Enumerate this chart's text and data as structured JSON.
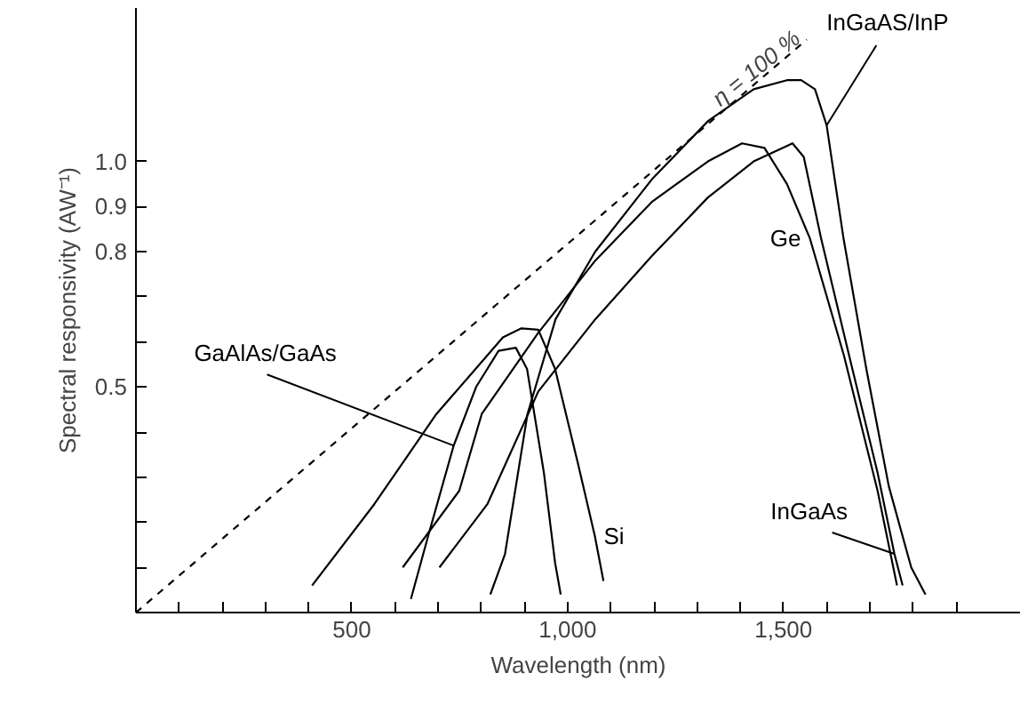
{
  "chart_data": {
    "type": "line",
    "xlabel": "Wavelength (nm)",
    "ylabel": "Spectral responsivity (AW⁻¹)",
    "xlim": [
      0,
      2050
    ],
    "ylim": [
      0,
      1.34
    ],
    "xticks": [
      {
        "value": 100,
        "label": null
      },
      {
        "value": 200,
        "label": null
      },
      {
        "value": 300,
        "label": null
      },
      {
        "value": 400,
        "label": null
      },
      {
        "value": 500,
        "label": "500"
      },
      {
        "value": 600,
        "label": null
      },
      {
        "value": 700,
        "label": null
      },
      {
        "value": 800,
        "label": null
      },
      {
        "value": 900,
        "label": null
      },
      {
        "value": 1000,
        "label": "1,000"
      },
      {
        "value": 1100,
        "label": null
      },
      {
        "value": 1200,
        "label": null
      },
      {
        "value": 1300,
        "label": null
      },
      {
        "value": 1400,
        "label": null
      },
      {
        "value": 1500,
        "label": "1,500"
      },
      {
        "value": 1600,
        "label": null
      },
      {
        "value": 1700,
        "label": null
      },
      {
        "value": 1800,
        "label": null
      },
      {
        "value": 1900,
        "label": null
      }
    ],
    "yticks": [
      {
        "value": 0.1,
        "label": null
      },
      {
        "value": 0.2,
        "label": null
      },
      {
        "value": 0.3,
        "label": null
      },
      {
        "value": 0.4,
        "label": null
      },
      {
        "value": 0.5,
        "label": "0.5"
      },
      {
        "value": 0.6,
        "label": null
      },
      {
        "value": 0.7,
        "label": null
      },
      {
        "value": 0.8,
        "label": "0.8"
      },
      {
        "value": 0.9,
        "label": "0.9"
      },
      {
        "value": 1.0,
        "label": "1.0"
      }
    ],
    "grid": false,
    "marker": "none",
    "line_style": "solid",
    "series": [
      {
        "color": "#000000",
        "line_style": "dashed",
        "x": [
          0,
          1554
        ],
        "values": [
          0,
          1.27
        ]
      },
      {
        "name": "GaAlAs/GaAs",
        "color": "#000000",
        "x": [
          637,
          677,
          736,
          788,
          840,
          880,
          906,
          945,
          971,
          984
        ],
        "values": [
          0.03,
          0.17,
          0.37,
          0.5,
          0.58,
          0.587,
          0.54,
          0.31,
          0.11,
          0.04
        ]
      },
      {
        "name": "Si",
        "color": "#000000",
        "x": [
          408,
          552,
          696,
          814,
          850,
          893,
          932,
          971,
          1024,
          1063,
          1083
        ],
        "values": [
          0.06,
          0.24,
          0.44,
          0.57,
          0.61,
          0.63,
          0.627,
          0.54,
          0.33,
          0.17,
          0.07
        ]
      },
      {
        "name": "Ge",
        "color": "#000000",
        "x": [
          618,
          749,
          801,
          932,
          1064,
          1195,
          1325,
          1404,
          1456,
          1508,
          1561,
          1640,
          1718,
          1763
        ],
        "values": [
          0.1,
          0.27,
          0.44,
          0.62,
          0.78,
          0.91,
          1.0,
          1.04,
          1.03,
          0.95,
          0.83,
          0.57,
          0.27,
          0.06
        ]
      },
      {
        "name": "InGaAs",
        "color": "#000000",
        "x": [
          703,
          814,
          932,
          1064,
          1195,
          1325,
          1431,
          1521,
          1547,
          1587,
          1652,
          1718,
          1757,
          1776
        ],
        "values": [
          0.1,
          0.24,
          0.49,
          0.65,
          0.79,
          0.92,
          1.0,
          1.04,
          1.01,
          0.83,
          0.57,
          0.31,
          0.13,
          0.06
        ]
      },
      {
        "name": "InGaAS/InP",
        "color": "#000000",
        "x": [
          821,
          855,
          907,
          972,
          1064,
          1195,
          1326,
          1431,
          1508,
          1541,
          1573,
          1600,
          1639,
          1692,
          1744,
          1796,
          1829
        ],
        "values": [
          0.04,
          0.13,
          0.44,
          0.65,
          0.8,
          0.96,
          1.09,
          1.16,
          1.18,
          1.18,
          1.16,
          1.08,
          0.83,
          0.54,
          0.28,
          0.1,
          0.04
        ]
      }
    ],
    "annotations": [
      {
        "text": "η = 100 %",
        "x": 1420,
        "y": 1.16
      }
    ]
  }
}
